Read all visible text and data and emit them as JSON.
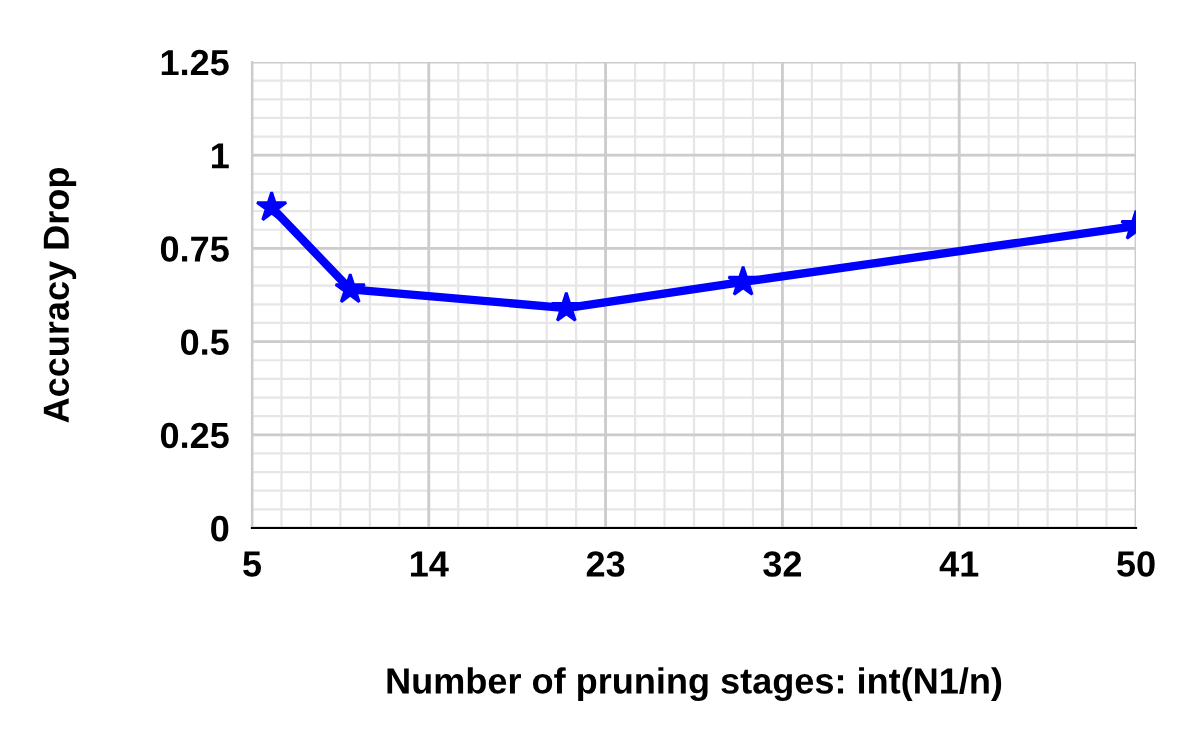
{
  "chart_data": {
    "type": "line",
    "xlabel": "Number of pruning stages: int(N1/n)",
    "ylabel": "Accuracy Drop",
    "x": [
      6,
      10,
      21,
      30,
      50
    ],
    "series": [
      {
        "color": "#0000ff",
        "values": [
          0.86,
          0.64,
          0.59,
          0.66,
          0.81
        ]
      }
    ],
    "xlim": [
      5,
      50
    ],
    "xticks": [
      5,
      14,
      23,
      32,
      41,
      50
    ],
    "ylim": [
      0,
      1.25
    ],
    "yticks": [
      0,
      {
        "value": 0.25,
        "label": "0.25"
      },
      {
        "value": 0.5,
        "label": "0.5"
      },
      {
        "value": 0.75,
        "label": "0.75"
      },
      1,
      {
        "value": 1.25,
        "label": "1.25"
      }
    ],
    "grid": true,
    "marker": "star",
    "line_style": "solid"
  }
}
